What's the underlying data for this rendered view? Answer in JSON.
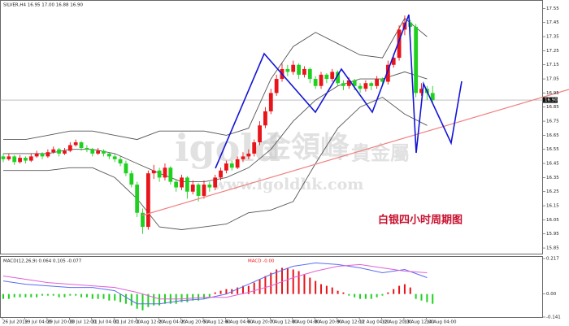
{
  "chart_data": [
    {
      "type": "candlestick",
      "title": "SILVER,H4 16.95 17.00 16.88 16.90",
      "annotation": "白银四小时周期图",
      "watermark": [
        "igold",
        "金領峰",
        "貴金屬",
        "www.igoldhk.com"
      ],
      "up_color": "#e8141a",
      "down_color": "#1fd11f",
      "ylim": [
        15.81,
        17.61
      ],
      "yticks": [
        17.55,
        17.45,
        17.35,
        17.25,
        17.15,
        17.05,
        16.95,
        16.85,
        16.75,
        16.65,
        16.55,
        16.45,
        16.35,
        16.25,
        16.15,
        16.05,
        15.95,
        15.85
      ],
      "current_price": {
        "value": 16.9,
        "label": "16.90"
      },
      "x_labels": [
        "26 Jul 2019",
        "29 Jul 04:00",
        "29 Jul 20:00",
        "30 Jul 12:00",
        "31 Jul 04:00",
        "31 Jul 20:00",
        "1 Aug 12:00",
        "2 Aug 04:00",
        "2 Aug 20:00",
        "5 Aug 12:00",
        "6 Aug 04:00",
        "6 Aug 20:00",
        "7 Aug 12:00",
        "8 Aug 04:00",
        "8 Aug 20:00",
        "9 Aug 12:00",
        "12 Aug 04:00",
        "12 Aug 20:00",
        "13 Aug 12:00",
        "14 Aug 04:00"
      ],
      "ohlc": [
        [
          16.5,
          16.52,
          16.46,
          16.48
        ],
        [
          16.48,
          16.52,
          16.47,
          16.5
        ],
        [
          16.5,
          16.51,
          16.44,
          16.46
        ],
        [
          16.46,
          16.51,
          16.45,
          16.49
        ],
        [
          16.49,
          16.5,
          16.45,
          16.47
        ],
        [
          16.47,
          16.52,
          16.46,
          16.5
        ],
        [
          16.5,
          16.54,
          16.49,
          16.52
        ],
        [
          16.52,
          16.53,
          16.48,
          16.5
        ],
        [
          16.5,
          16.55,
          16.49,
          16.53
        ],
        [
          16.53,
          16.57,
          16.52,
          16.55
        ],
        [
          16.55,
          16.56,
          16.5,
          16.52
        ],
        [
          16.52,
          16.56,
          16.51,
          16.54
        ],
        [
          16.54,
          16.6,
          16.53,
          16.58
        ],
        [
          16.58,
          16.62,
          16.57,
          16.6
        ],
        [
          16.6,
          16.61,
          16.54,
          16.56
        ],
        [
          16.56,
          16.58,
          16.53,
          16.55
        ],
        [
          16.55,
          16.56,
          16.5,
          16.52
        ],
        [
          16.52,
          16.56,
          16.51,
          16.54
        ],
        [
          16.54,
          16.55,
          16.5,
          16.52
        ],
        [
          16.52,
          16.53,
          16.48,
          16.5
        ],
        [
          16.5,
          16.52,
          16.46,
          16.48
        ],
        [
          16.48,
          16.5,
          16.43,
          16.45
        ],
        [
          16.45,
          16.47,
          16.36,
          16.38
        ],
        [
          16.38,
          16.4,
          16.28,
          16.3
        ],
        [
          16.3,
          16.32,
          16.07,
          16.1
        ],
        [
          16.1,
          16.13,
          15.95,
          16.0
        ],
        [
          16.0,
          16.4,
          15.98,
          16.38
        ],
        [
          16.38,
          16.44,
          16.34,
          16.4
        ],
        [
          16.4,
          16.42,
          16.32,
          16.35
        ],
        [
          16.35,
          16.45,
          16.33,
          16.42
        ],
        [
          16.42,
          16.43,
          16.3,
          16.32
        ],
        [
          16.32,
          16.34,
          16.25,
          16.28
        ],
        [
          16.28,
          16.37,
          16.26,
          16.35
        ],
        [
          16.35,
          16.36,
          16.2,
          16.25
        ],
        [
          16.25,
          16.33,
          16.23,
          16.3
        ],
        [
          16.3,
          16.31,
          16.18,
          16.22
        ],
        [
          16.22,
          16.33,
          16.2,
          16.3
        ],
        [
          16.3,
          16.32,
          16.25,
          16.28
        ],
        [
          16.28,
          16.37,
          16.26,
          16.35
        ],
        [
          16.35,
          16.42,
          16.33,
          16.4
        ],
        [
          16.4,
          16.47,
          16.38,
          16.45
        ],
        [
          16.45,
          16.47,
          16.4,
          16.42
        ],
        [
          16.42,
          16.5,
          16.41,
          16.48
        ],
        [
          16.48,
          16.53,
          16.46,
          16.5
        ],
        [
          16.5,
          16.55,
          16.48,
          16.52
        ],
        [
          16.52,
          16.62,
          16.5,
          16.6
        ],
        [
          16.6,
          16.75,
          16.58,
          16.72
        ],
        [
          16.72,
          16.85,
          16.7,
          16.82
        ],
        [
          16.82,
          16.98,
          16.8,
          16.95
        ],
        [
          16.95,
          17.08,
          16.93,
          17.05
        ],
        [
          17.05,
          17.16,
          17.03,
          17.12
        ],
        [
          17.12,
          17.15,
          17.07,
          17.1
        ],
        [
          17.1,
          17.18,
          17.08,
          17.15
        ],
        [
          17.15,
          17.16,
          17.05,
          17.08
        ],
        [
          17.08,
          17.14,
          17.06,
          17.12
        ],
        [
          17.12,
          17.13,
          17.02,
          17.05
        ],
        [
          17.05,
          17.07,
          16.98,
          17.0
        ],
        [
          17.0,
          17.1,
          16.98,
          17.08
        ],
        [
          17.08,
          17.09,
          17.02,
          17.05
        ],
        [
          17.05,
          17.12,
          17.03,
          17.1
        ],
        [
          17.1,
          17.11,
          17.0,
          17.02
        ],
        [
          17.02,
          17.04,
          16.97,
          17.0
        ],
        [
          17.0,
          17.06,
          16.98,
          17.04
        ],
        [
          17.04,
          17.05,
          16.97,
          17.0
        ],
        [
          17.0,
          17.02,
          16.95,
          16.98
        ],
        [
          16.98,
          17.04,
          16.96,
          17.02
        ],
        [
          17.02,
          17.03,
          16.97,
          17.0
        ],
        [
          17.0,
          17.07,
          16.98,
          17.05
        ],
        [
          17.05,
          17.06,
          17.0,
          17.03
        ],
        [
          17.03,
          17.18,
          17.01,
          17.15
        ],
        [
          17.15,
          17.23,
          17.13,
          17.2
        ],
        [
          17.2,
          17.43,
          17.18,
          17.4
        ],
        [
          17.4,
          17.5,
          17.36,
          17.45
        ],
        [
          17.45,
          17.47,
          17.38,
          17.42
        ],
        [
          17.42,
          17.44,
          16.92,
          16.95
        ],
        [
          16.95,
          17.02,
          16.93,
          16.98
        ],
        [
          16.98,
          17.0,
          16.9,
          16.95
        ],
        [
          16.95,
          17.0,
          16.88,
          16.9
        ]
      ],
      "band_x": [
        0,
        4,
        8,
        12,
        16,
        20,
        24,
        28,
        32,
        36,
        40,
        44,
        48,
        52,
        56,
        60,
        64,
        68,
        72,
        76
      ],
      "bands": [
        {
          "color": "#555555",
          "values": [
            16.62,
            16.62,
            16.65,
            16.68,
            16.68,
            16.65,
            16.62,
            16.68,
            16.68,
            16.68,
            16.65,
            16.7,
            17.05,
            17.28,
            17.38,
            17.3,
            17.22,
            17.2,
            17.48,
            17.35
          ]
        },
        {
          "color": "#555555",
          "values": [
            16.52,
            16.52,
            16.52,
            16.55,
            16.55,
            16.52,
            16.45,
            16.38,
            16.32,
            16.32,
            16.35,
            16.42,
            16.55,
            16.75,
            16.9,
            17.0,
            17.05,
            17.05,
            17.1,
            17.05
          ]
        },
        {
          "color": "#555555",
          "values": [
            16.4,
            16.4,
            16.4,
            16.42,
            16.42,
            16.35,
            16.2,
            16.0,
            15.98,
            16.0,
            16.02,
            16.1,
            16.12,
            16.18,
            16.45,
            16.7,
            16.85,
            16.92,
            16.8,
            16.72
          ]
        }
      ]
    },
    {
      "type": "macd",
      "title": "MACD(12,26,9) 0.064 0.105 -0.077",
      "indicator_label": "MACD -0.00",
      "ylim": [
        -0.141,
        0.217
      ],
      "yticks": [
        0.217,
        {
          "value": 0,
          "label": "0.00"
        },
        -0.141
      ],
      "up_color": "#e8141a",
      "down_color": "#1fd11f",
      "histogram": [
        -0.03,
        -0.03,
        -0.02,
        -0.02,
        -0.02,
        -0.02,
        -0.02,
        -0.01,
        -0.01,
        -0.01,
        -0.02,
        -0.02,
        -0.01,
        -0.01,
        -0.02,
        -0.02,
        -0.03,
        -0.03,
        -0.03,
        -0.04,
        -0.04,
        -0.05,
        -0.06,
        -0.07,
        -0.09,
        -0.1,
        -0.08,
        -0.07,
        -0.07,
        -0.06,
        -0.06,
        -0.06,
        -0.05,
        -0.05,
        -0.04,
        -0.04,
        -0.03,
        -0.02,
        0.01,
        0.02,
        0.03,
        0.03,
        0.04,
        0.05,
        0.05,
        0.07,
        0.09,
        0.11,
        0.13,
        0.15,
        0.16,
        0.16,
        0.15,
        0.14,
        0.12,
        0.1,
        0.08,
        0.06,
        0.05,
        0.04,
        0.02,
        0.01,
        -0.01,
        -0.02,
        -0.03,
        -0.03,
        -0.03,
        -0.02,
        -0.01,
        0.01,
        0.03,
        0.05,
        0.06,
        0.04,
        -0.03,
        -0.04,
        -0.05,
        -0.06
      ],
      "x": [
        0,
        4,
        8,
        12,
        16,
        20,
        24,
        28,
        32,
        36,
        40,
        44,
        48,
        52,
        56,
        60,
        64,
        68,
        72,
        76
      ],
      "series": [
        {
          "color": "#5b6cf0",
          "values": [
            0.08,
            0.06,
            0.05,
            0.04,
            0.04,
            0.02,
            -0.06,
            -0.06,
            -0.04,
            -0.03,
            0.0,
            0.06,
            0.12,
            0.17,
            0.19,
            0.18,
            0.16,
            0.13,
            0.15,
            0.1
          ]
        },
        {
          "color": "#e060d8",
          "values": [
            0.11,
            0.09,
            0.07,
            0.06,
            0.05,
            0.04,
            0.01,
            -0.03,
            -0.03,
            -0.02,
            -0.02,
            0.01,
            0.05,
            0.1,
            0.14,
            0.17,
            0.18,
            0.16,
            0.14,
            0.13
          ]
        }
      ]
    }
  ]
}
